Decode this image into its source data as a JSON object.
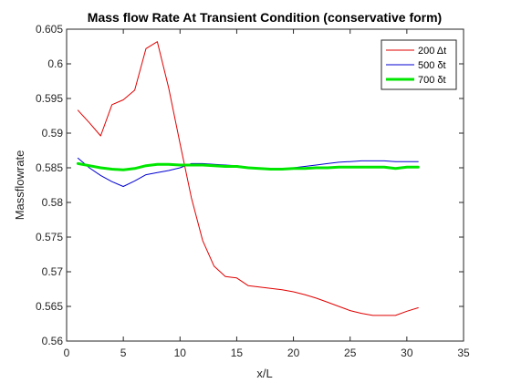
{
  "chart_data": {
    "type": "line",
    "title": "Mass flow Rate At Transient Condition (conservative form)",
    "xlabel": "x/L",
    "ylabel": "Massflowrate",
    "xlim": [
      0,
      35
    ],
    "ylim": [
      0.56,
      0.605
    ],
    "xticks": [
      0,
      5,
      10,
      15,
      20,
      25,
      30,
      35
    ],
    "xtick_labels": [
      "0",
      "5",
      "10",
      "15",
      "20",
      "25",
      "30",
      "35"
    ],
    "yticks": [
      0.56,
      0.565,
      0.57,
      0.575,
      0.58,
      0.585,
      0.59,
      0.595,
      0.6,
      0.605
    ],
    "ytick_labels": [
      "0.56",
      "0.565",
      "0.57",
      "0.575",
      "0.58",
      "0.585",
      "0.59",
      "0.595",
      "0.6",
      "0.605"
    ],
    "grid": false,
    "legend_position": "top-right",
    "series": [
      {
        "name": "200 Δt",
        "color": "#e00000",
        "width": 1,
        "x": [
          1,
          2,
          3,
          4,
          5,
          6,
          7,
          8,
          9,
          10,
          11,
          12,
          13,
          14,
          15,
          16,
          17,
          18,
          19,
          20,
          21,
          22,
          23,
          24,
          25,
          26,
          27,
          28,
          29,
          30,
          31
        ],
        "y": [
          0.5933,
          0.5915,
          0.5896,
          0.5941,
          0.5948,
          0.5962,
          0.6022,
          0.6032,
          0.5965,
          0.5885,
          0.5807,
          0.5745,
          0.5708,
          0.5693,
          0.5691,
          0.568,
          0.5678,
          0.5676,
          0.5674,
          0.5671,
          0.5667,
          0.5662,
          0.5656,
          0.565,
          0.5644,
          0.564,
          0.5637,
          0.5637,
          0.5637,
          0.5643,
          0.5648
        ]
      },
      {
        "name": "500 δt",
        "color": "#0000d0",
        "width": 1,
        "x": [
          1,
          2,
          3,
          4,
          5,
          6,
          7,
          8,
          9,
          10,
          11,
          12,
          13,
          14,
          15,
          16,
          17,
          18,
          19,
          20,
          21,
          22,
          23,
          24,
          25,
          26,
          27,
          28,
          29,
          30,
          31
        ],
        "y": [
          0.5864,
          0.585,
          0.5839,
          0.583,
          0.5823,
          0.5831,
          0.584,
          0.5843,
          0.5846,
          0.585,
          0.5856,
          0.5856,
          0.5855,
          0.5854,
          0.5853,
          0.5851,
          0.5849,
          0.5848,
          0.5848,
          0.585,
          0.5852,
          0.5854,
          0.5856,
          0.5858,
          0.5859,
          0.586,
          0.586,
          0.586,
          0.5859,
          0.5859,
          0.5859
        ]
      },
      {
        "name": "700 δt",
        "color": "#00e600",
        "width": 3,
        "x": [
          1,
          2,
          3,
          4,
          5,
          6,
          7,
          8,
          9,
          10,
          11,
          12,
          13,
          14,
          15,
          16,
          17,
          18,
          19,
          20,
          21,
          22,
          23,
          24,
          25,
          26,
          27,
          28,
          29,
          30,
          31
        ],
        "y": [
          0.5856,
          0.5853,
          0.585,
          0.5848,
          0.5847,
          0.5849,
          0.5853,
          0.5855,
          0.5855,
          0.5854,
          0.5854,
          0.5854,
          0.5853,
          0.5852,
          0.5852,
          0.585,
          0.5849,
          0.5848,
          0.5848,
          0.5849,
          0.5849,
          0.585,
          0.585,
          0.5851,
          0.5851,
          0.5851,
          0.5851,
          0.5851,
          0.5849,
          0.5851,
          0.5851
        ]
      }
    ]
  }
}
